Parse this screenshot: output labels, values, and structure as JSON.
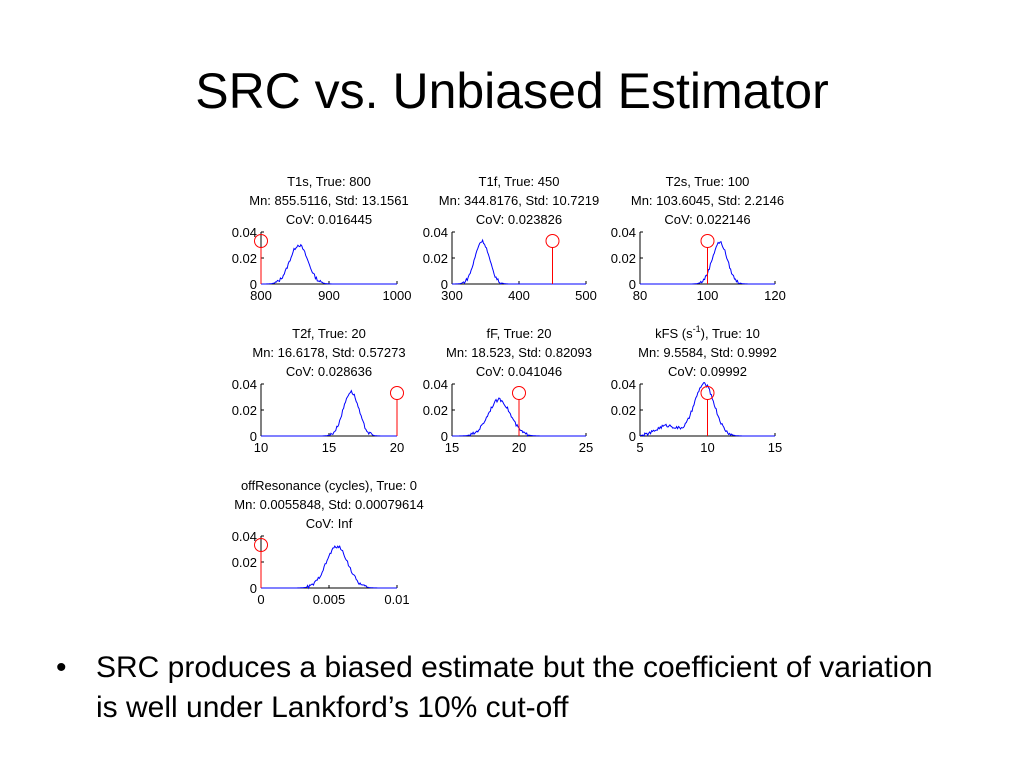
{
  "slide": {
    "title": "SRC vs. Unbiased Estimator",
    "bullet_symbol": "•",
    "bullet": "SRC produces a biased estimate but the coefficient of variation is well under Lankford’s 10% cut-off"
  },
  "colors": {
    "histogram": "#0000ff",
    "true_marker": "#ff0000",
    "axes": "#000000"
  },
  "chart_data": [
    {
      "type": "histogram",
      "title": [
        "T1s, True: 800",
        "Mn: 855.5116, Std: 13.1561",
        "CoV: 0.016445"
      ],
      "xlim": [
        800,
        1000
      ],
      "xticks": [
        "800",
        "900",
        "1000"
      ],
      "ylim": [
        0,
        0.04
      ],
      "yticks": [
        "0",
        "0.02",
        "0.04"
      ],
      "true_value": 800,
      "mean": 855.5116,
      "std": 13.1561,
      "peak_density": 0.03
    },
    {
      "type": "histogram",
      "title": [
        "T1f, True: 450",
        "Mn: 344.8176, Std: 10.7219",
        "CoV: 0.023826"
      ],
      "xlim": [
        300,
        500
      ],
      "xticks": [
        "300",
        "400",
        "500"
      ],
      "ylim": [
        0,
        0.04
      ],
      "yticks": [
        "0",
        "0.02",
        "0.04"
      ],
      "true_value": 450,
      "mean": 344.8176,
      "std": 10.7219,
      "peak_density": 0.033
    },
    {
      "type": "histogram",
      "title": [
        "T2s, True: 100",
        "Mn: 103.6045, Std: 2.2146",
        "CoV: 0.022146"
      ],
      "xlim": [
        80,
        120
      ],
      "xticks": [
        "80",
        "100",
        "120"
      ],
      "ylim": [
        0,
        0.04
      ],
      "yticks": [
        "0",
        "0.02",
        "0.04"
      ],
      "true_value": 100,
      "mean": 103.6045,
      "std": 2.2146,
      "peak_density": 0.032
    },
    {
      "type": "histogram",
      "title": [
        "T2f, True: 20",
        "Mn: 16.6178, Std: 0.57273",
        "CoV: 0.028636"
      ],
      "xlim": [
        10,
        20
      ],
      "xticks": [
        "10",
        "15",
        "20"
      ],
      "ylim": [
        0,
        0.04
      ],
      "yticks": [
        "0",
        "0.02",
        "0.04"
      ],
      "true_value": 20,
      "mean": 16.6178,
      "std": 0.57273,
      "peak_density": 0.034
    },
    {
      "type": "histogram",
      "title": [
        "fF, True: 20",
        "Mn: 18.523, Std: 0.82093",
        "CoV: 0.041046"
      ],
      "xlim": [
        15,
        25
      ],
      "xticks": [
        "15",
        "20",
        "25"
      ],
      "ylim": [
        0,
        0.04
      ],
      "yticks": [
        "0",
        "0.02",
        "0.04"
      ],
      "true_value": 20,
      "mean": 18.523,
      "std": 0.82093,
      "peak_density": 0.028
    },
    {
      "type": "histogram",
      "title": [
        "kFS (s",
        "-1",
        "), True: 10",
        "Mn: 9.5584, Std: 0.9992",
        "CoV: 0.09992"
      ],
      "title_has_superscript": true,
      "xlim": [
        5,
        15
      ],
      "xticks": [
        "5",
        "10",
        "15"
      ],
      "ylim": [
        0,
        0.04
      ],
      "yticks": [
        "0",
        "0.02",
        "0.04"
      ],
      "true_value": 10,
      "mean": 9.5584,
      "std": 0.9992,
      "peak_density": 0.04,
      "shoulder": {
        "x": 7,
        "density": 0.008
      }
    },
    {
      "type": "histogram",
      "title": [
        "offResonance (cycles), True: 0",
        "Mn: 0.0055848, Std: 0.00079614",
        "CoV: Inf"
      ],
      "xlim": [
        0,
        0.01
      ],
      "xticks": [
        "0",
        "0.005",
        "0.01"
      ],
      "ylim": [
        0,
        0.04
      ],
      "yticks": [
        "0",
        "0.02",
        "0.04"
      ],
      "true_value": 0,
      "mean": 0.0055848,
      "std": 0.00079614,
      "peak_density": 0.032
    }
  ]
}
